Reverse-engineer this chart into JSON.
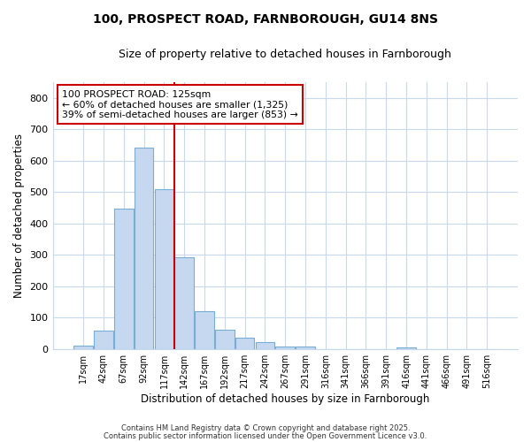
{
  "title": "100, PROSPECT ROAD, FARNBOROUGH, GU14 8NS",
  "subtitle": "Size of property relative to detached houses in Farnborough",
  "xlabel": "Distribution of detached houses by size in Farnborough",
  "ylabel": "Number of detached properties",
  "bar_labels": [
    "17sqm",
    "42sqm",
    "67sqm",
    "92sqm",
    "117sqm",
    "142sqm",
    "167sqm",
    "192sqm",
    "217sqm",
    "242sqm",
    "267sqm",
    "291sqm",
    "316sqm",
    "341sqm",
    "366sqm",
    "391sqm",
    "416sqm",
    "441sqm",
    "466sqm",
    "491sqm",
    "516sqm"
  ],
  "bar_heights": [
    10,
    57,
    448,
    642,
    510,
    292,
    120,
    62,
    35,
    22,
    8,
    8,
    0,
    0,
    0,
    0,
    5,
    0,
    0,
    0,
    0
  ],
  "bar_color": "#c5d8f0",
  "bar_edge_color": "#7aadd4",
  "fig_bg_color": "#ffffff",
  "ax_bg_color": "#ffffff",
  "grid_color": "#c8d8ee",
  "red_line_x": 4.5,
  "annotation_title": "100 PROSPECT ROAD: 125sqm",
  "annotation_line1": "← 60% of detached houses are smaller (1,325)",
  "annotation_line2": "39% of semi-detached houses are larger (853) →",
  "footer1": "Contains HM Land Registry data © Crown copyright and database right 2025.",
  "footer2": "Contains public sector information licensed under the Open Government Licence v3.0.",
  "ylim": [
    0,
    850
  ],
  "yticks": [
    0,
    100,
    200,
    300,
    400,
    500,
    600,
    700,
    800
  ]
}
